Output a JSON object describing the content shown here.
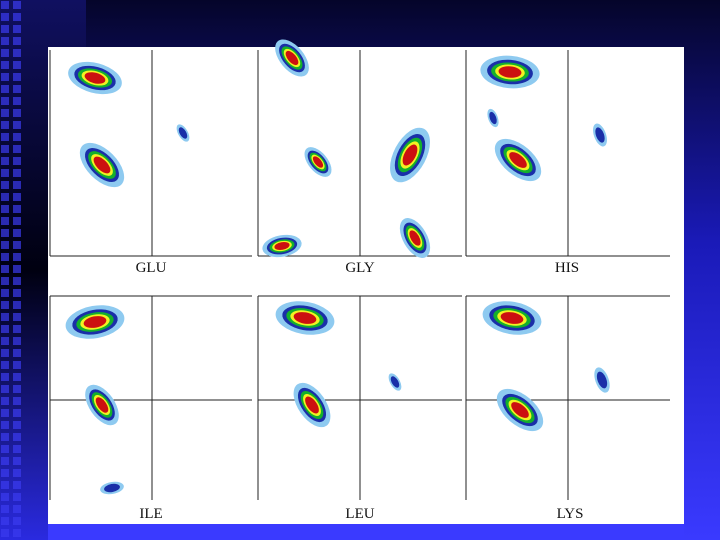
{
  "panels": [
    {
      "label": "GLU"
    },
    {
      "label": "GLY"
    },
    {
      "label": "HIS"
    },
    {
      "label": "ILE"
    },
    {
      "label": "LEU"
    },
    {
      "label": "LYS"
    }
  ]
}
